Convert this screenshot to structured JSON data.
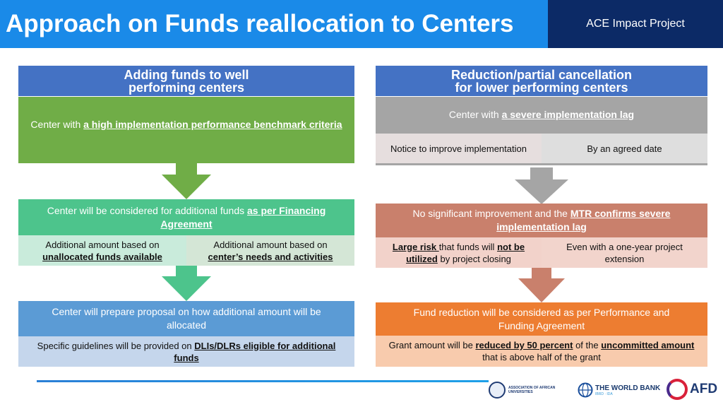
{
  "header": {
    "title": "Approach on Funds reallocation to Centers",
    "project": "ACE Impact Project"
  },
  "left": {
    "heading": "Adding funds to well performing centers",
    "step1": {
      "pre": "Center with ",
      "em": "a high implementation performance benchmark criteria"
    },
    "step2": {
      "pre": "Center will be considered for additional funds ",
      "em": "as per Financing Agreement"
    },
    "step2a": {
      "pre": "Additional amount based on ",
      "em": "unallocated funds available"
    },
    "step2b": {
      "pre": "Additional amount based on ",
      "em": "center’s needs and activities"
    },
    "step3": "Center will prepare proposal on how additional amount will be allocated",
    "step3a": {
      "pre": "Specific guidelines will be provided on ",
      "em": "DLIs/DLRs eligible for additional funds"
    }
  },
  "right": {
    "heading": "Reduction/partial cancellation for lower performing centers",
    "step1": {
      "pre": "Center with ",
      "em": "a severe implementation lag"
    },
    "step1a": "Notice to improve implementation",
    "step1b": "By an agreed date",
    "step2": {
      "pre": "No significant improvement and the ",
      "em": "MTR confirms severe implementation lag"
    },
    "step2a": {
      "em1": "Large risk ",
      "mid": "that funds will ",
      "em2": "not be utilized",
      "post": " by project closing"
    },
    "step2b": "Even with a one-year project extension",
    "step3": "Fund reduction will be considered as per Performance and Funding Agreement",
    "step3a": {
      "pre": "Grant amount will be ",
      "em1": "reduced by 50 percent",
      "mid": " of the ",
      "em2": "uncommitted amount",
      "post": " that is above half of the grant"
    }
  },
  "logos": {
    "aau": "ASSOCIATION OF AFRICAN UNIVERSITIES",
    "worldbank": "THE WORLD BANK",
    "worldbank_sub": "IBRD · IDA",
    "afd": "AFD"
  },
  "colors": {
    "title_bar": "#1a8ae8",
    "project_bar": "#0c2a66",
    "heading": "#4472c4",
    "green": "#70ad47",
    "teal": "#4dc48c",
    "blue": "#5b9bd5",
    "gray": "#a5a5a5",
    "salmon": "#c9806c",
    "orange": "#ed7d31"
  }
}
